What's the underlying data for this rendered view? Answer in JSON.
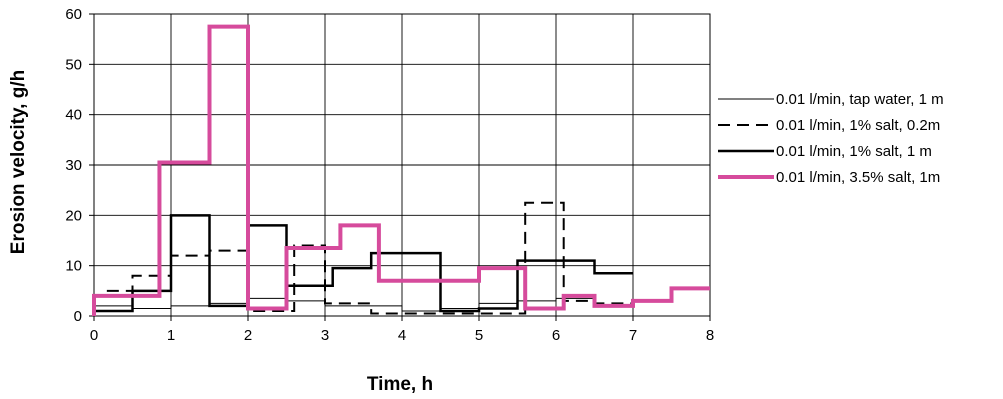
{
  "chart_data": {
    "type": "line",
    "title": "",
    "xlabel": "Time, h",
    "ylabel": "Erosion velocity, g/h",
    "xlim": [
      0,
      8
    ],
    "ylim": [
      0,
      60
    ],
    "xticks": [
      "0",
      "1",
      "2",
      "3",
      "4",
      "5",
      "6",
      "7",
      "8"
    ],
    "yticks": [
      "0",
      "10",
      "20",
      "30",
      "40",
      "50",
      "60"
    ],
    "grid": true,
    "legend_position": "right",
    "series": [
      {
        "name": "0.01 l/min, tap water, 1 m",
        "style": "thin-solid",
        "color": "#000000",
        "steps": [
          [
            0,
            2
          ],
          [
            0.5,
            1.5
          ],
          [
            1,
            2
          ],
          [
            1.5,
            2.5
          ],
          [
            2,
            3.5
          ],
          [
            2.5,
            3
          ],
          [
            3,
            2
          ],
          [
            3.6,
            2
          ],
          [
            4,
            1
          ],
          [
            4.5,
            1.5
          ],
          [
            5,
            2.5
          ],
          [
            5.5,
            3
          ],
          [
            6,
            3.5
          ],
          [
            6.5,
            2
          ],
          [
            7,
            2
          ]
        ]
      },
      {
        "name": "0.01 l/min, 1% salt, 0.2m",
        "style": "dashed",
        "color": "#000000",
        "steps": [
          [
            0,
            4
          ],
          [
            0.16,
            5
          ],
          [
            0.5,
            8
          ],
          [
            1,
            12
          ],
          [
            1.5,
            13
          ],
          [
            2,
            1
          ],
          [
            2.6,
            14
          ],
          [
            3,
            2.5
          ],
          [
            3.6,
            0.5
          ],
          [
            4.5,
            0.5
          ],
          [
            5.6,
            22.5
          ],
          [
            6.1,
            3
          ],
          [
            6.5,
            2.5
          ],
          [
            7,
            2.5
          ]
        ]
      },
      {
        "name": "0.01 l/min, 1% salt, 1 m",
        "style": "solid",
        "color": "#000000",
        "steps": [
          [
            0,
            1
          ],
          [
            0.5,
            5
          ],
          [
            1,
            20
          ],
          [
            1.5,
            2
          ],
          [
            2,
            18
          ],
          [
            2.5,
            6
          ],
          [
            3.1,
            9.5
          ],
          [
            3.6,
            12.5
          ],
          [
            4.5,
            1
          ],
          [
            5,
            1.5
          ],
          [
            5.5,
            11
          ],
          [
            6.5,
            8.5
          ],
          [
            7,
            8.5
          ]
        ]
      },
      {
        "name": "0.01 l/min, 3.5% salt, 1m",
        "style": "thick-solid",
        "color": "#d64b9c",
        "steps": [
          [
            0,
            4
          ],
          [
            0.85,
            30.5
          ],
          [
            1.5,
            57.5
          ],
          [
            2,
            1.5
          ],
          [
            2.5,
            13.5
          ],
          [
            3.2,
            18
          ],
          [
            3.7,
            7
          ],
          [
            5,
            9.5
          ],
          [
            5.6,
            1.5
          ],
          [
            6.1,
            4
          ],
          [
            6.5,
            2
          ],
          [
            7,
            3
          ],
          [
            7.5,
            5.5
          ],
          [
            8,
            5.5
          ]
        ]
      }
    ]
  }
}
